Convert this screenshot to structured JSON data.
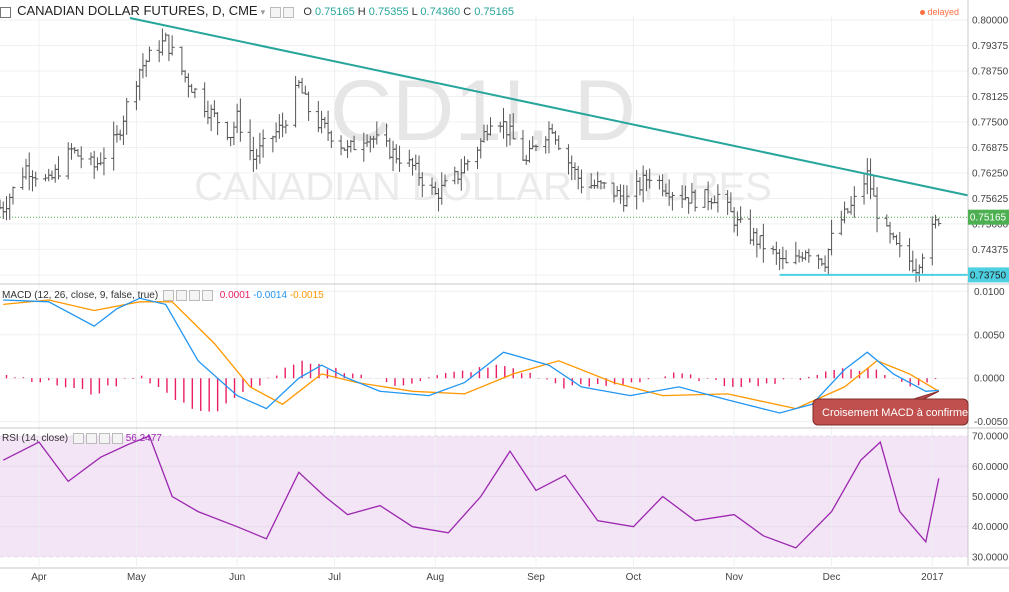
{
  "header": {
    "symbol_title": "CANADIAN DOLLAR FUTURES, D, CME",
    "ohlc": [
      {
        "key": "O",
        "value": "0.75165"
      },
      {
        "key": "H",
        "value": "0.75355"
      },
      {
        "key": "L",
        "value": "0.74360"
      },
      {
        "key": "C",
        "value": "0.75165"
      }
    ],
    "delayed_label": "delayed"
  },
  "watermark": {
    "ticker": "CD1!, D",
    "name": "CANADIAN DOLLAR FUTURES"
  },
  "colors": {
    "trendline": "#26a69a",
    "support": "#4dd0e1",
    "macd_line": "#2196f3",
    "signal_line": "#ff9800",
    "histogram": "#e91e63",
    "rsi_line": "#9c27b0",
    "rsi_band": "#f3e5f5",
    "last_price_bg": "#4caf50",
    "support_label_bg": "#4dd0e1",
    "callout_bg": "#c0504d"
  },
  "macd": {
    "title": "MACD (12, 26, close, 9, false, true)",
    "values": [
      "0.0001",
      "-0.0014",
      "-0.0015"
    ],
    "value_colors": [
      "#e91e63",
      "#2196f3",
      "#ff9800"
    ]
  },
  "rsi": {
    "title": "RSI (14, close)",
    "value": "56.2477"
  },
  "annotations": {
    "macd_callout": "Croisement MACD à confirmer",
    "last_price": "0.75165",
    "support_price": "0.73750"
  },
  "chart_data": [
    {
      "type": "candlestick",
      "title": "CANADIAN DOLLAR FUTURES, D, CME",
      "x_tick_labels": [
        "Apr",
        "May",
        "Jun",
        "Jul",
        "Aug",
        "Sep",
        "Oct",
        "Nov",
        "Dec",
        "2017"
      ],
      "y_tick_labels": [
        "0.80000",
        "0.79375",
        "0.78750",
        "0.78125",
        "0.77500",
        "0.76875",
        "0.76250",
        "0.75625",
        "0.75000",
        "0.74375",
        "0.73750"
      ],
      "ylim": [
        0.736,
        0.801
      ],
      "series": [
        {
          "values": [
            {
              "x": "Mar 21",
              "c": 0.754
            },
            {
              "x": "Mar 28",
              "c": 0.764
            },
            {
              "x": "Apr 4",
              "c": 0.76
            },
            {
              "x": "Apr 11",
              "c": 0.768
            },
            {
              "x": "Apr 18",
              "c": 0.764
            },
            {
              "x": "Apr 25",
              "c": 0.771
            },
            {
              "x": "Apr 28",
              "c": 0.779
            },
            {
              "x": "May 2",
              "c": 0.788
            },
            {
              "x": "May 6",
              "c": 0.792
            },
            {
              "x": "May 10",
              "c": 0.795
            },
            {
              "x": "May 16",
              "c": 0.786
            },
            {
              "x": "May 23",
              "c": 0.778
            },
            {
              "x": "May 30",
              "c": 0.772
            },
            {
              "x": "Jun 1",
              "c": 0.776
            },
            {
              "x": "Jun 6",
              "c": 0.766
            },
            {
              "x": "Jun 10",
              "c": 0.77
            },
            {
              "x": "Jun 15",
              "c": 0.774
            },
            {
              "x": "Jun 20",
              "c": 0.784
            },
            {
              "x": "Jun 24",
              "c": 0.776
            },
            {
              "x": "Jun 30",
              "c": 0.772
            },
            {
              "x": "Jul 5",
              "c": 0.768
            },
            {
              "x": "Jul 11",
              "c": 0.772
            },
            {
              "x": "Jul 18",
              "c": 0.768
            },
            {
              "x": "Jul 25",
              "c": 0.764
            },
            {
              "x": "Aug 1",
              "c": 0.757
            },
            {
              "x": "Aug 8",
              "c": 0.762
            },
            {
              "x": "Aug 15",
              "c": 0.77
            },
            {
              "x": "Aug 19",
              "c": 0.778
            },
            {
              "x": "Aug 24",
              "c": 0.772
            },
            {
              "x": "Aug 29",
              "c": 0.765
            },
            {
              "x": "Sep 1",
              "c": 0.77
            },
            {
              "x": "Sep 6",
              "c": 0.774
            },
            {
              "x": "Sep 9",
              "c": 0.768
            },
            {
              "x": "Sep 15",
              "c": 0.76
            },
            {
              "x": "Sep 22",
              "c": 0.759
            },
            {
              "x": "Sep 29",
              "c": 0.756
            },
            {
              "x": "Oct 6",
              "c": 0.762
            },
            {
              "x": "Oct 13",
              "c": 0.758
            },
            {
              "x": "Oct 20",
              "c": 0.756
            },
            {
              "x": "Oct 27",
              "c": 0.757
            },
            {
              "x": "Nov 2",
              "c": 0.75
            },
            {
              "x": "Nov 8",
              "c": 0.746
            },
            {
              "x": "Nov 14",
              "c": 0.742
            },
            {
              "x": "Nov 18",
              "c": 0.739
            },
            {
              "x": "Nov 23",
              "c": 0.744
            },
            {
              "x": "Nov 29",
              "c": 0.741
            },
            {
              "x": "Dec 2",
              "c": 0.749
            },
            {
              "x": "Dec 7",
              "c": 0.754
            },
            {
              "x": "Dec 12",
              "c": 0.762
            },
            {
              "x": "Dec 16",
              "c": 0.75
            },
            {
              "x": "Dec 21",
              "c": 0.744
            },
            {
              "x": "Dec 27",
              "c": 0.7395
            },
            {
              "x": "Dec 30",
              "c": 0.745
            },
            {
              "x": "Jan 3",
              "c": 0.7516
            }
          ]
        }
      ],
      "trendline": {
        "from": {
          "x": "Apr 29",
          "y": 0.8005
        },
        "to": {
          "x": "Jan 12",
          "y": 0.757
        }
      },
      "support_line": {
        "from": {
          "x": "Nov 15",
          "y": 0.7375
        },
        "to": {
          "x": "Jan 12",
          "y": 0.7375
        }
      },
      "last_price": 0.75165,
      "grid": true
    },
    {
      "type": "line",
      "title": "MACD (12, 26, close, 9, false, true)",
      "y_tick_labels": [
        "0.0100",
        "0.0050",
        "0.0000",
        "-0.0050"
      ],
      "ylim": [
        -0.0055,
        0.0105
      ],
      "series": [
        {
          "name": "MACD",
          "values": [
            {
              "x": "Mar 21",
              "y": 0.009
            },
            {
              "x": "Apr 4",
              "y": 0.0088
            },
            {
              "x": "Apr 18",
              "y": 0.006
            },
            {
              "x": "Apr 25",
              "y": 0.008
            },
            {
              "x": "May 2",
              "y": 0.0092
            },
            {
              "x": "May 10",
              "y": 0.0085
            },
            {
              "x": "May 20",
              "y": 0.002
            },
            {
              "x": "Jun 1",
              "y": -0.002
            },
            {
              "x": "Jun 10",
              "y": -0.0035
            },
            {
              "x": "Jun 20",
              "y": 0.0
            },
            {
              "x": "Jun 27",
              "y": 0.0015
            },
            {
              "x": "Jul 5",
              "y": 0.0
            },
            {
              "x": "Jul 15",
              "y": -0.0015
            },
            {
              "x": "Jul 30",
              "y": -0.002
            },
            {
              "x": "Aug 10",
              "y": -0.0005
            },
            {
              "x": "Aug 22",
              "y": 0.003
            },
            {
              "x": "Sep 5",
              "y": 0.0015
            },
            {
              "x": "Sep 15",
              "y": -0.001
            },
            {
              "x": "Sep 30",
              "y": -0.002
            },
            {
              "x": "Oct 15",
              "y": -0.001
            },
            {
              "x": "Oct 30",
              "y": -0.0025
            },
            {
              "x": "Nov 15",
              "y": -0.004
            },
            {
              "x": "Nov 25",
              "y": -0.003
            },
            {
              "x": "Dec 5",
              "y": 0.001
            },
            {
              "x": "Dec 12",
              "y": 0.003
            },
            {
              "x": "Dec 20",
              "y": 0.0005
            },
            {
              "x": "Dec 30",
              "y": -0.0015
            },
            {
              "x": "Jan 3",
              "y": -0.0014
            }
          ]
        },
        {
          "name": "Signal",
          "values": [
            {
              "x": "Mar 21",
              "y": 0.0085
            },
            {
              "x": "Apr 4",
              "y": 0.009
            },
            {
              "x": "Apr 18",
              "y": 0.0078
            },
            {
              "x": "May 2",
              "y": 0.0088
            },
            {
              "x": "May 12",
              "y": 0.0088
            },
            {
              "x": "May 25",
              "y": 0.004
            },
            {
              "x": "Jun 5",
              "y": -0.001
            },
            {
              "x": "Jun 15",
              "y": -0.003
            },
            {
              "x": "Jun 27",
              "y": 0.0005
            },
            {
              "x": "Jul 8",
              "y": -0.0005
            },
            {
              "x": "Jul 25",
              "y": -0.0015
            },
            {
              "x": "Aug 10",
              "y": -0.0018
            },
            {
              "x": "Aug 25",
              "y": 0.0005
            },
            {
              "x": "Sep 8",
              "y": 0.002
            },
            {
              "x": "Sep 25",
              "y": -0.0005
            },
            {
              "x": "Oct 10",
              "y": -0.002
            },
            {
              "x": "Oct 30",
              "y": -0.0018
            },
            {
              "x": "Nov 20",
              "y": -0.0035
            },
            {
              "x": "Dec 5",
              "y": -0.001
            },
            {
              "x": "Dec 15",
              "y": 0.002
            },
            {
              "x": "Dec 25",
              "y": 0.0005
            },
            {
              "x": "Jan 3",
              "y": -0.0015
            }
          ]
        }
      ],
      "histogram": {
        "name": "Histogram",
        "values": [
          {
            "x": "Mar 21",
            "y": 0.0005
          },
          {
            "x": "Apr 4",
            "y": -0.0005
          },
          {
            "x": "Apr 18",
            "y": -0.0018
          },
          {
            "x": "May 2",
            "y": 0.0005
          },
          {
            "x": "May 15",
            "y": -0.003
          },
          {
            "x": "May 25",
            "y": -0.004
          },
          {
            "x": "Jun 5",
            "y": -0.0012
          },
          {
            "x": "Jun 20",
            "y": 0.0018
          },
          {
            "x": "Jul 5",
            "y": 0.0008
          },
          {
            "x": "Jul 20",
            "y": -0.0008
          },
          {
            "x": "Aug 5",
            "y": 0.0005
          },
          {
            "x": "Aug 22",
            "y": 0.0015
          },
          {
            "x": "Sep 10",
            "y": -0.001
          },
          {
            "x": "Sep 25",
            "y": -0.0008
          },
          {
            "x": "Oct 15",
            "y": 0.0005
          },
          {
            "x": "Oct 30",
            "y": -0.0008
          },
          {
            "x": "Nov 15",
            "y": -0.0005
          },
          {
            "x": "Dec 5",
            "y": 0.0012
          },
          {
            "x": "Dec 15",
            "y": 0.001
          },
          {
            "x": "Dec 25",
            "y": -0.001
          },
          {
            "x": "Jan 3",
            "y": 0.0001
          }
        ]
      },
      "grid": true
    },
    {
      "type": "line",
      "title": "RSI (14, close)",
      "y_tick_labels": [
        "70.0000",
        "60.0000",
        "50.0000",
        "40.0000",
        "30.0000"
      ],
      "ylim": [
        27,
        72
      ],
      "band": [
        30,
        70
      ],
      "series": [
        {
          "name": "RSI",
          "values": [
            {
              "x": "Mar 21",
              "y": 62
            },
            {
              "x": "Apr 1",
              "y": 68
            },
            {
              "x": "Apr 10",
              "y": 55
            },
            {
              "x": "Apr 20",
              "y": 63
            },
            {
              "x": "Apr 28",
              "y": 67
            },
            {
              "x": "May 5",
              "y": 70
            },
            {
              "x": "May 12",
              "y": 50
            },
            {
              "x": "May 20",
              "y": 45
            },
            {
              "x": "Jun 1",
              "y": 40
            },
            {
              "x": "Jun 10",
              "y": 36
            },
            {
              "x": "Jun 20",
              "y": 58
            },
            {
              "x": "Jun 28",
              "y": 50
            },
            {
              "x": "Jul 5",
              "y": 44
            },
            {
              "x": "Jul 15",
              "y": 47
            },
            {
              "x": "Jul 25",
              "y": 40
            },
            {
              "x": "Aug 5",
              "y": 38
            },
            {
              "x": "Aug 15",
              "y": 50
            },
            {
              "x": "Aug 24",
              "y": 65
            },
            {
              "x": "Sep 1",
              "y": 52
            },
            {
              "x": "Sep 10",
              "y": 57
            },
            {
              "x": "Sep 20",
              "y": 42
            },
            {
              "x": "Oct 1",
              "y": 40
            },
            {
              "x": "Oct 10",
              "y": 50
            },
            {
              "x": "Oct 20",
              "y": 42
            },
            {
              "x": "Nov 1",
              "y": 44
            },
            {
              "x": "Nov 10",
              "y": 37
            },
            {
              "x": "Nov 20",
              "y": 33
            },
            {
              "x": "Dec 1",
              "y": 45
            },
            {
              "x": "Dec 10",
              "y": 62
            },
            {
              "x": "Dec 16",
              "y": 68
            },
            {
              "x": "Dec 22",
              "y": 45
            },
            {
              "x": "Dec 30",
              "y": 35
            },
            {
              "x": "Jan 3",
              "y": 56
            }
          ]
        }
      ],
      "grid": true
    }
  ]
}
